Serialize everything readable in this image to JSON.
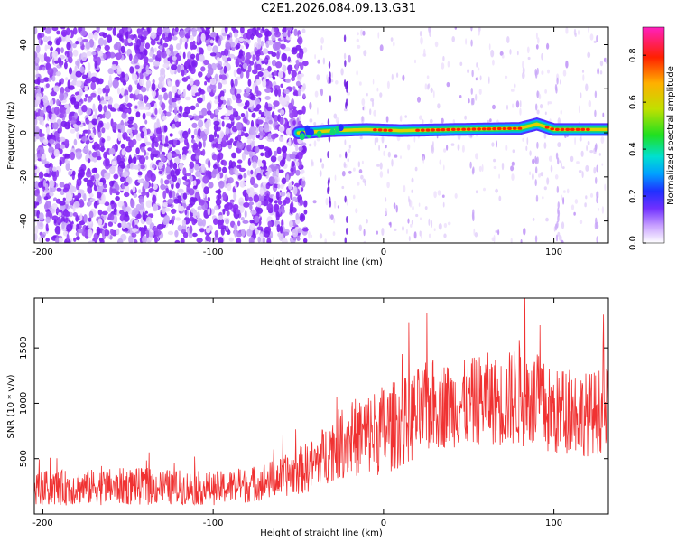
{
  "title": "C2E1.2026.084.09.13.G31",
  "chart_data": [
    {
      "type": "heatmap",
      "name": "spectrogram",
      "xlabel": "Height of straight line (km)",
      "ylabel": "Frequency (Hz)",
      "xlim": [
        -205,
        132
      ],
      "ylim": [
        -50,
        48
      ],
      "xticks": [
        -200,
        -100,
        0,
        100
      ],
      "yticks": [
        -40,
        -20,
        0,
        20,
        40
      ],
      "colorbar": {
        "label": "Normalized spectral amplitude",
        "range": [
          0,
          0.92
        ],
        "ticks": [
          0.0,
          0.2,
          0.4,
          0.6,
          0.8
        ]
      },
      "signal_line": {
        "description_x_start": -50,
        "x": [
          -50,
          -30,
          -10,
          10,
          40,
          80,
          90,
          100,
          132
        ],
        "freq": [
          0,
          1,
          1.5,
          1,
          1.5,
          2,
          4,
          1.5,
          1.5
        ]
      }
    },
    {
      "type": "line",
      "name": "snr",
      "xlabel": "Height of straight line (km)",
      "ylabel": "SNR (10 * v/v)",
      "xlim": [
        -205,
        132
      ],
      "ylim": [
        0,
        1950
      ],
      "xticks": [
        -200,
        -100,
        0,
        100
      ],
      "yticks": [
        500,
        1000,
        1500
      ],
      "color": "#f03232",
      "envelope": {
        "x": [
          -205,
          -180,
          -150,
          -120,
          -100,
          -80,
          -60,
          -40,
          -30,
          -20,
          -10,
          0,
          10,
          20,
          30,
          40,
          50,
          60,
          70,
          80,
          90,
          100,
          110,
          120,
          132
        ],
        "mean": [
          230,
          240,
          250,
          240,
          230,
          260,
          330,
          450,
          600,
          680,
          720,
          760,
          820,
          900,
          1000,
          980,
          1000,
          1050,
          1000,
          1100,
          1000,
          900,
          950,
          900,
          950
        ],
        "amp": [
          160,
          160,
          170,
          160,
          150,
          160,
          180,
          250,
          300,
          350,
          380,
          420,
          400,
          420,
          420,
          380,
          400,
          420,
          400,
          500,
          450,
          400,
          400,
          380,
          400
        ]
      }
    }
  ]
}
